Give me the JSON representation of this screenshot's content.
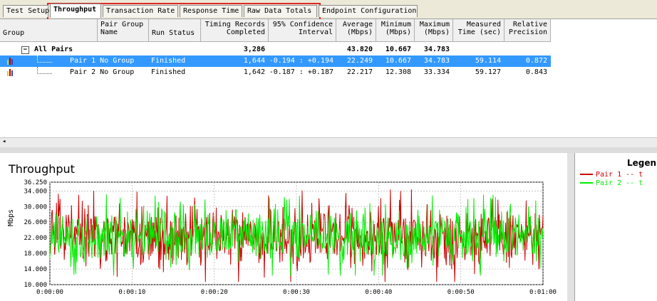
{
  "tabs": [
    {
      "label": "Test Setup",
      "active": false
    },
    {
      "label": "Throughput",
      "active": true
    },
    {
      "label": "Transaction Rate",
      "active": false
    },
    {
      "label": "Response Time",
      "active": false
    },
    {
      "label": "Raw Data Totals",
      "active": false
    },
    {
      "label": "Endpoint Configuration",
      "active": false
    }
  ],
  "grid": {
    "headers": [
      "Group",
      "Pair Group\nName",
      "Run Status",
      "Timing Records\nCompleted",
      "95% Confidence\nInterval",
      "Average\n(Mbps)",
      "Minimum\n(Mbps)",
      "Maximum\n(Mbps)",
      "Measured\nTime (sec)",
      "Relative\nPrecision"
    ],
    "group_row": {
      "expander": "−",
      "label": "All Pairs",
      "records": "3,286",
      "average": "43.820",
      "minimum": "10.667",
      "maximum": "34.783"
    },
    "rows": [
      {
        "pair": "Pair 1",
        "group_name": "No Group",
        "status": "Finished",
        "records": "1,644",
        "ci": "-0.194 : +0.194",
        "average": "22.249",
        "minimum": "10.667",
        "maximum": "34.783",
        "time": "59.114",
        "precision": "0.872",
        "selected": true
      },
      {
        "pair": "Pair 2",
        "group_name": "No Group",
        "status": "Finished",
        "records": "1,642",
        "ci": "-0.187 : +0.187",
        "average": "22.217",
        "minimum": "12.308",
        "maximum": "33.334",
        "time": "59.127",
        "precision": "0.843",
        "selected": false
      }
    ]
  },
  "legend": {
    "title": "Legen",
    "entries": [
      {
        "label": "Pair 1 -- t",
        "color": "#cc0000"
      },
      {
        "label": "Pair 2 -- t",
        "color": "#00ee00"
      }
    ]
  },
  "chart_data": {
    "type": "line",
    "title": "Throughput",
    "xlabel": "",
    "ylabel": "Mbps",
    "ylim": [
      10.0,
      36.25
    ],
    "xlim": [
      0,
      60
    ],
    "y_ticks": [
      "36.250",
      "34.000",
      "30.000",
      "26.000",
      "22.000",
      "18.000",
      "14.000",
      "10.000"
    ],
    "y_tick_values": [
      36.25,
      34,
      30,
      26,
      22,
      18,
      14,
      10
    ],
    "x_ticks": [
      "0:00:00",
      "0:00:10",
      "0:00:20",
      "0:00:30",
      "0:00:40",
      "0:00:50",
      "0:01:00"
    ],
    "x_tick_values": [
      0,
      10,
      20,
      30,
      40,
      50,
      60
    ],
    "grid": true,
    "series": [
      {
        "name": "Pair 1 -- t",
        "color": "#cc0000",
        "mean": 22.249,
        "min": 10.667,
        "max": 34.783,
        "samples": 822
      },
      {
        "name": "Pair 2 -- t",
        "color": "#00ee00",
        "mean": 22.217,
        "min": 12.308,
        "max": 33.334,
        "samples": 821
      }
    ]
  }
}
